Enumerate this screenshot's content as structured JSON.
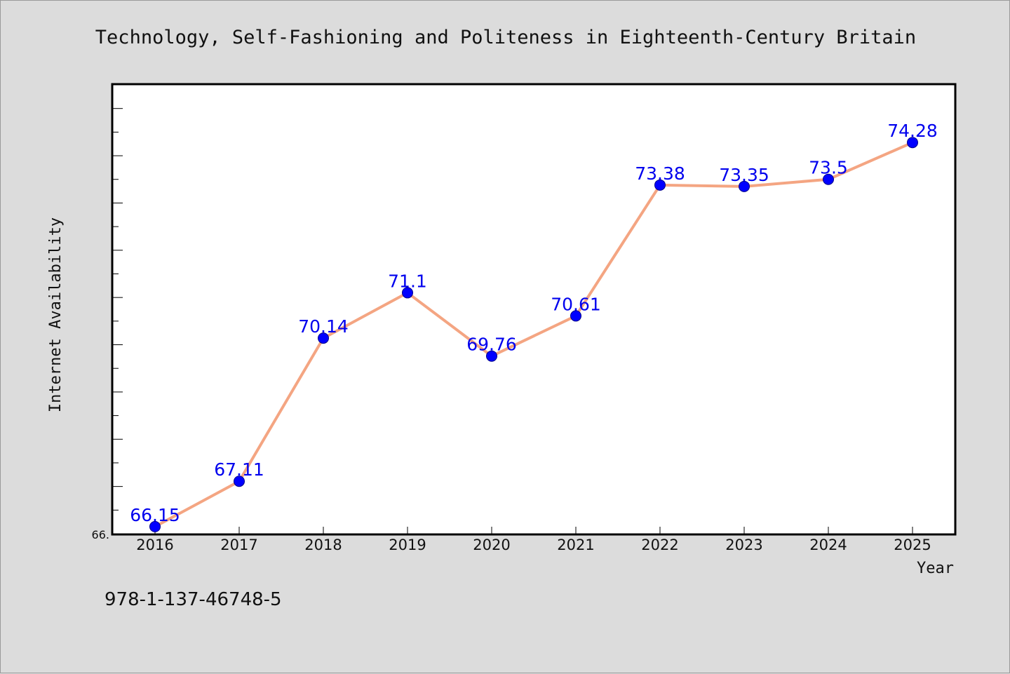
{
  "chart_data": {
    "type": "line",
    "title": "Technology, Self-Fashioning and Politeness in Eighteenth-Century Britain",
    "xlabel": "Year",
    "ylabel": "Internet Availability",
    "x": [
      "2016",
      "2017",
      "2018",
      "2019",
      "2020",
      "2021",
      "2022",
      "2023",
      "2024",
      "2025"
    ],
    "series": [
      {
        "values": [
          66.15,
          67.11,
          70.14,
          71.1,
          69.76,
          70.61,
          73.38,
          73.35,
          73.5,
          74.28
        ],
        "labels": [
          "66.15",
          "67.11",
          "70.14",
          "71.1",
          "69.76",
          "70.61",
          "73.38",
          "73.35",
          "73.5",
          "74.28"
        ]
      }
    ],
    "ylim": [
      66.0,
      75.5
    ],
    "ytick_visible_label": "66.",
    "grid": false,
    "colors": {
      "line": "#f4a582",
      "marker": "#0000ff",
      "data_label": "#0000ee"
    }
  },
  "footer": {
    "isbn": "978-1-137-46748-5"
  }
}
